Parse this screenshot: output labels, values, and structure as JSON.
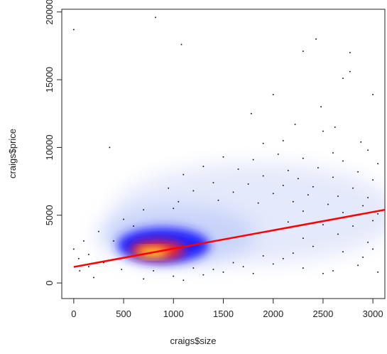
{
  "chart_data": {
    "type": "scatter",
    "xlabel": "craigs$size",
    "ylabel": "craigs$price",
    "x": [
      0,
      820,
      1080,
      2300,
      2430,
      2770,
      2700,
      2770,
      3000,
      2480,
      1780,
      2000,
      2220,
      2500,
      2620,
      2100,
      360,
      1900,
      2880,
      2950,
      2600,
      1500,
      1800,
      2050,
      2300,
      2700,
      3050,
      1300,
      1650,
      2150,
      2450,
      2850,
      1100,
      1900,
      2250,
      2600,
      3000,
      1400,
      1750,
      2100,
      2400,
      2800,
      950,
      1200,
      1600,
      2000,
      2350,
      2650,
      2950,
      1050,
      1450,
      1850,
      2200,
      2550,
      2900,
      700,
      1000,
      2300,
      2700,
      3050,
      500,
      2150,
      2500,
      2800,
      3000,
      600,
      250,
      100,
      2300,
      2650,
      2950,
      400,
      0,
      150,
      50,
      2400,
      2700,
      3000,
      1900,
      2100,
      300,
      150,
      60,
      480,
      800,
      1200,
      1500,
      1700,
      2000,
      2300,
      2600,
      2850,
      3050,
      1000,
      1300,
      200,
      700,
      1800,
      2500,
      1100,
      1400,
      1600,
      2200,
      2900
    ],
    "values": [
      18700,
      19600,
      17600,
      17100,
      18000,
      17000,
      15100,
      15600,
      13900,
      13000,
      12500,
      13900,
      11700,
      11200,
      11500,
      10500,
      10000,
      10300,
      10400,
      9800,
      9600,
      9300,
      9100,
      9500,
      9200,
      9000,
      8800,
      8600,
      8400,
      8300,
      8500,
      8200,
      8000,
      7900,
      7700,
      7800,
      7600,
      7400,
      7300,
      7200,
      7100,
      7000,
      7000,
      6800,
      6700,
      6600,
      6500,
      6400,
      6300,
      6000,
      6100,
      5900,
      6000,
      5800,
      5700,
      5400,
      5500,
      5300,
      5200,
      5100,
      4700,
      4500,
      4300,
      4200,
      4600,
      4200,
      3800,
      3100,
      3300,
      3600,
      3000,
      3100,
      2500,
      2100,
      1800,
      2700,
      2300,
      2500,
      2000,
      1800,
      1500,
      1200,
      900,
      1000,
      900,
      1100,
      800,
      1200,
      1400,
      1100,
      900,
      1300,
      800,
      500,
      600,
      400,
      300,
      700,
      700,
      200,
      1000,
      1500,
      2200,
      1900
    ],
    "color": "#000000",
    "fit": {
      "x": [
        0,
        3120
      ],
      "values": [
        1180,
        5400
      ],
      "color": "#ff0000"
    },
    "xlim": [
      -120,
      3120
    ],
    "ylim": [
      -1150,
      20200
    ],
    "xticks": [
      0,
      500,
      1000,
      1500,
      2000,
      2500,
      3000
    ],
    "yticks": [
      0,
      5000,
      10000,
      15000,
      20000
    ]
  }
}
